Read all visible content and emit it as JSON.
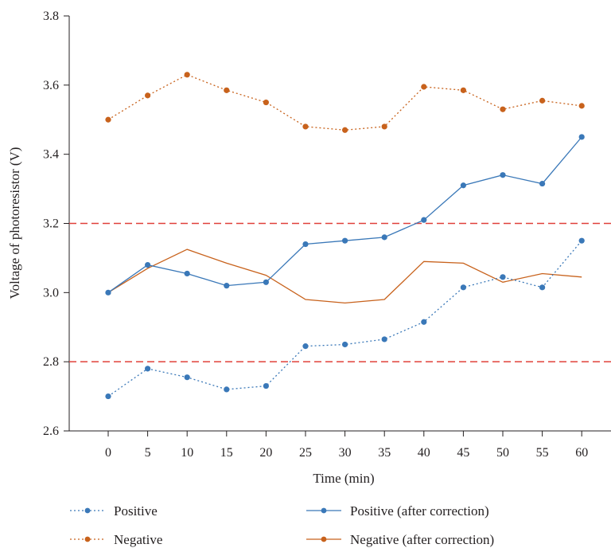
{
  "chart_data": {
    "type": "line",
    "xlabel": "Time (min)",
    "ylabel": "Voltage of photoresistor (V)",
    "x": [
      0,
      5,
      10,
      15,
      20,
      25,
      30,
      35,
      40,
      45,
      50,
      55,
      60
    ],
    "x_tick_labels": [
      "0",
      "5",
      "10",
      "15",
      "20",
      "25",
      "30",
      "35",
      "40",
      "45",
      "50",
      "55",
      "60"
    ],
    "ylim": [
      2.6,
      3.8
    ],
    "y_ticks": [
      2.6,
      2.8,
      3.0,
      3.2,
      3.4,
      3.6,
      3.8
    ],
    "y_tick_labels": [
      "2.6",
      "2.8",
      "3.0",
      "3.2",
      "3.4",
      "3.6",
      "3.8"
    ],
    "grid": false,
    "legend_position": "bottom",
    "threshold_lines": [
      {
        "y": 3.2,
        "color": "#e0403a",
        "style": "dashed"
      },
      {
        "y": 2.8,
        "color": "#e0403a",
        "style": "dashed"
      }
    ],
    "series": [
      {
        "name": "Positive",
        "color": "#3a78b8",
        "line_style": "dotted",
        "markers": true,
        "values": [
          2.7,
          2.78,
          2.755,
          2.72,
          2.73,
          2.845,
          2.85,
          2.865,
          2.915,
          3.015,
          3.045,
          3.015,
          3.15
        ]
      },
      {
        "name": "Negative",
        "color": "#c8621c",
        "line_style": "dotted",
        "markers": true,
        "values": [
          3.5,
          3.57,
          3.63,
          3.585,
          3.55,
          3.48,
          3.47,
          3.48,
          3.595,
          3.585,
          3.53,
          3.555,
          3.54
        ]
      },
      {
        "name": "Positive (after correction)",
        "color": "#3a78b8",
        "line_style": "solid",
        "markers": true,
        "values": [
          3.0,
          3.08,
          3.055,
          3.02,
          3.03,
          3.14,
          3.15,
          3.16,
          3.21,
          3.31,
          3.34,
          3.315,
          3.45
        ]
      },
      {
        "name": "Negative (after correction)",
        "color": "#c8621c",
        "line_style": "solid",
        "markers": false,
        "values": [
          3.0,
          3.07,
          3.125,
          3.085,
          3.05,
          2.98,
          2.97,
          2.98,
          3.09,
          3.085,
          3.03,
          3.055,
          3.045
        ]
      }
    ]
  }
}
